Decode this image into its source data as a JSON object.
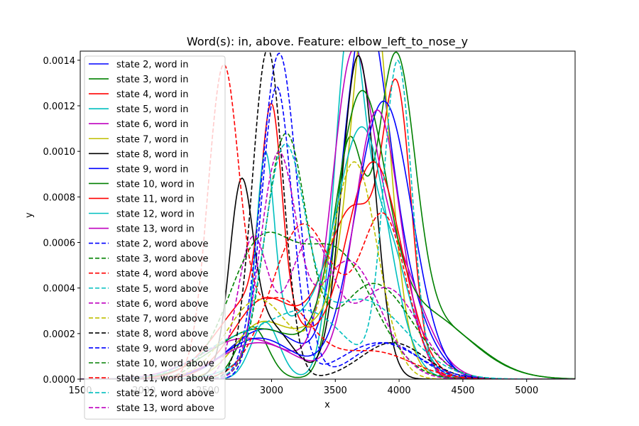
{
  "chart_data": {
    "type": "line",
    "title": "Word(s): in, above. Feature: elbow_left_to_nose_y",
    "xlabel": "x",
    "ylabel": "y",
    "xlim": [
      1500,
      5380
    ],
    "ylim": [
      0,
      0.00144
    ],
    "x_ticks": [
      {
        "value": 1500,
        "label": "1500"
      },
      {
        "value": 2000,
        "label": "2000"
      },
      {
        "value": 2500,
        "label": "2500"
      },
      {
        "value": 3000,
        "label": "3000"
      },
      {
        "value": 3500,
        "label": "3500"
      },
      {
        "value": 4000,
        "label": "4000"
      },
      {
        "value": 4500,
        "label": "4500"
      },
      {
        "value": 5000,
        "label": "5000"
      }
    ],
    "y_ticks": [
      {
        "value": 0,
        "label": "0.0000"
      },
      {
        "value": 0.0002,
        "label": "0.0002"
      },
      {
        "value": 0.0004,
        "label": "0.0004"
      },
      {
        "value": 0.0006,
        "label": "0.0006"
      },
      {
        "value": 0.0008,
        "label": "0.0008"
      },
      {
        "value": 0.001,
        "label": "0.0010"
      },
      {
        "value": 0.0012,
        "label": "0.0012"
      },
      {
        "value": 0.0014,
        "label": "0.0014"
      }
    ],
    "grid": false,
    "legend_position": "upper-left",
    "series": [
      {
        "name": "state 2, word in",
        "color": "#0000ff",
        "dash": "solid",
        "components": [
          [
            0.00022,
            2950,
            280
          ],
          [
            0.00134,
            3720,
            170
          ],
          [
            0.00044,
            3950,
            230
          ]
        ]
      },
      {
        "name": "state 3, word in",
        "color": "#008000",
        "dash": "solid",
        "components": [
          [
            0.00023,
            2850,
            120
          ],
          [
            0.00095,
            3600,
            110
          ],
          [
            0.00125,
            3970,
            150
          ],
          [
            0.00025,
            4250,
            350
          ]
        ]
      },
      {
        "name": "state 4, word in",
        "color": "#ff0000",
        "dash": "solid",
        "components": [
          [
            0.00035,
            2950,
            250
          ],
          [
            0.00075,
            3650,
            230
          ],
          [
            0.00105,
            3990,
            110
          ]
        ]
      },
      {
        "name": "state 5, word in",
        "color": "#00bfbf",
        "dash": "solid",
        "components": [
          [
            0.00025,
            2950,
            110
          ],
          [
            0.00125,
            3600,
            110
          ],
          [
            0.0007,
            3850,
            200
          ]
        ]
      },
      {
        "name": "state 6, word in",
        "color": "#bf00bf",
        "dash": "solid",
        "components": [
          [
            0.00018,
            2800,
            350
          ],
          [
            0.0011,
            3620,
            150
          ],
          [
            0.0006,
            3900,
            250
          ]
        ]
      },
      {
        "name": "state 7, word in",
        "color": "#bfbf00",
        "dash": "solid",
        "components": [
          [
            0.00022,
            2900,
            200
          ],
          [
            0.00155,
            3780,
            140
          ],
          [
            0.0003,
            3550,
            300
          ]
        ]
      },
      {
        "name": "state 8, word in",
        "color": "#000000",
        "dash": "solid",
        "components": [
          [
            0.00072,
            2760,
            90
          ],
          [
            0.00025,
            2950,
            200
          ],
          [
            0.00142,
            3680,
            130
          ]
        ]
      },
      {
        "name": "state 9, word in",
        "color": "#0000ff",
        "dash": "solid",
        "components": [
          [
            0.00018,
            2900,
            280
          ],
          [
            0.00122,
            3880,
            220
          ]
        ]
      },
      {
        "name": "state 10, word in",
        "color": "#008000",
        "dash": "solid",
        "components": [
          [
            0.00022,
            2900,
            350
          ],
          [
            0.0011,
            3700,
            190
          ],
          [
            0.0003,
            4150,
            380
          ]
        ]
      },
      {
        "name": "state 11, word in",
        "color": "#ff0000",
        "dash": "solid",
        "components": [
          [
            0.00085,
            3000,
            80
          ],
          [
            0.00038,
            2900,
            300
          ],
          [
            0.00095,
            3800,
            220
          ]
        ]
      },
      {
        "name": "state 12, word in",
        "color": "#00bfbf",
        "dash": "solid",
        "components": [
          [
            0.00082,
            2950,
            70
          ],
          [
            0.00025,
            3200,
            300
          ],
          [
            0.00105,
            3720,
            200
          ]
        ]
      },
      {
        "name": "state 13, word in",
        "color": "#bf00bf",
        "dash": "solid",
        "components": [
          [
            0.00016,
            2900,
            300
          ],
          [
            0.00118,
            3830,
            180
          ]
        ]
      },
      {
        "name": "state 2, word above",
        "color": "#0000ff",
        "dash": "dashed",
        "components": [
          [
            0.00143,
            3060,
            140
          ],
          [
            0.00016,
            3900,
            250
          ]
        ]
      },
      {
        "name": "state 3, word above",
        "color": "#008000",
        "dash": "dashed",
        "components": [
          [
            0.00105,
            3110,
            160
          ],
          [
            0.00042,
            3800,
            300
          ]
        ]
      },
      {
        "name": "state 4, word above",
        "color": "#ff0000",
        "dash": "dashed",
        "components": [
          [
            0.00068,
            3250,
            250
          ],
          [
            0.0007,
            3880,
            180
          ]
        ]
      },
      {
        "name": "state 5, word above",
        "color": "#00bfbf",
        "dash": "dashed",
        "components": [
          [
            0.00015,
            2700,
            300
          ],
          [
            0.00028,
            3300,
            300
          ],
          [
            0.00138,
            3990,
            110
          ]
        ]
      },
      {
        "name": "state 6, word above",
        "color": "#bf00bf",
        "dash": "dashed",
        "components": [
          [
            0.0006,
            2850,
            120
          ],
          [
            0.0006,
            3300,
            180
          ],
          [
            0.0004,
            3900,
            250
          ]
        ]
      },
      {
        "name": "state 7, word above",
        "color": "#bfbf00",
        "dash": "dashed",
        "components": [
          [
            0.00035,
            2900,
            250
          ],
          [
            0.00095,
            3650,
            180
          ]
        ]
      },
      {
        "name": "state 8, word above",
        "color": "#000000",
        "dash": "dashed",
        "components": [
          [
            0.00145,
            2970,
            120
          ],
          [
            0.00016,
            3950,
            250
          ]
        ]
      },
      {
        "name": "state 9, word above",
        "color": "#0000ff",
        "dash": "dashed",
        "components": [
          [
            0.00128,
            3040,
            120
          ],
          [
            0.00016,
            3850,
            300
          ]
        ]
      },
      {
        "name": "state 10, word above",
        "color": "#008000",
        "dash": "dashed",
        "components": [
          [
            0.00055,
            2900,
            250
          ],
          [
            0.00055,
            3500,
            300
          ]
        ]
      },
      {
        "name": "state 11, word above",
        "color": "#ff0000",
        "dash": "dashed",
        "components": [
          [
            0.0013,
            2620,
            120
          ],
          [
            0.00035,
            3050,
            250
          ],
          [
            0.00012,
            3800,
            300
          ]
        ]
      },
      {
        "name": "state 12, word above",
        "color": "#00bfbf",
        "dash": "dashed",
        "components": [
          [
            0.00095,
            3100,
            160
          ],
          [
            0.00035,
            3700,
            350
          ]
        ]
      },
      {
        "name": "state 13, word above",
        "color": "#bf00bf",
        "dash": "dashed",
        "components": [
          [
            0.00095,
            3050,
            140
          ],
          [
            0.00052,
            3600,
            250
          ]
        ]
      }
    ]
  }
}
